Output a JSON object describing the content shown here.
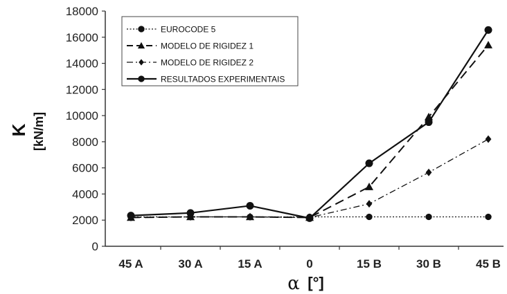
{
  "chart_data": {
    "type": "line",
    "categories": [
      "45 A",
      "30 A",
      "15 A",
      "0",
      "15 B",
      "30 B",
      "45 B"
    ],
    "series": [
      {
        "name": "EUROCODE 5",
        "marker": "circle",
        "dash": "dotted",
        "values": [
          2250,
          2250,
          2250,
          2250,
          2250,
          2250,
          2250
        ]
      },
      {
        "name": "MODELO DE RIGIDEZ 1",
        "marker": "triangle",
        "dash": "dashed",
        "values": [
          2200,
          2250,
          2250,
          2200,
          4550,
          9900,
          15400
        ]
      },
      {
        "name": "MODELO DE RIGIDEZ 2",
        "marker": "diamond",
        "dash": "dashdot",
        "values": [
          2200,
          2250,
          2250,
          2200,
          3250,
          5650,
          8200
        ]
      },
      {
        "name": "RESULTADOS EXPERIMENTAIS",
        "marker": "circle",
        "dash": "solid",
        "values": [
          2350,
          2550,
          3100,
          2150,
          6350,
          9500,
          16550
        ]
      }
    ],
    "ylim": [
      0,
      18000
    ],
    "yticks": [
      "0",
      "2000",
      "4000",
      "6000",
      "8000",
      "10000",
      "12000",
      "14000",
      "16000",
      "18000"
    ],
    "ylabel": "K",
    "ylabel_unit": "[kN/m]",
    "xlabel": "α",
    "xlabel_unit": "[°]",
    "legend_position": "top-left",
    "grid": false,
    "colors": {
      "line": "#111111",
      "axis": "#333333"
    }
  }
}
